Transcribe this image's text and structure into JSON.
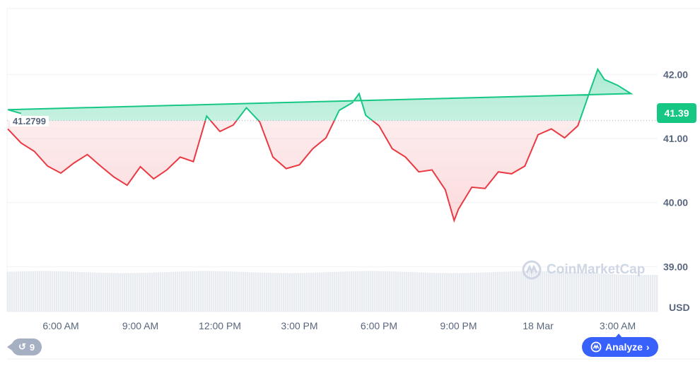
{
  "chart_data": {
    "type": "line",
    "title": "",
    "currency": "USD",
    "reference_price": 41.2799,
    "reference_label": "41.2799",
    "last_price_label": "41.39",
    "y_ticks": [
      "39.00",
      "40.00",
      "41.00",
      "42.00"
    ],
    "ylim": [
      38.6,
      42.4
    ],
    "x_ticks": [
      {
        "t": "06:00",
        "label": "6:00 AM"
      },
      {
        "t": "09:00",
        "label": "9:00 AM"
      },
      {
        "t": "12:00",
        "label": "12:00 PM"
      },
      {
        "t": "15:00",
        "label": "3:00 PM"
      },
      {
        "t": "18:00",
        "label": "6:00 PM"
      },
      {
        "t": "21:00",
        "label": "9:00 PM"
      },
      {
        "t": "00:00",
        "label": "18 Mar"
      },
      {
        "t": "03:00",
        "label": "3:00 AM"
      }
    ],
    "grid": true,
    "colors": {
      "up": "#16c784",
      "down": "#ea3943",
      "grid": "#eff2f5",
      "volume": "#e8ebf0"
    },
    "series": [
      {
        "points": [
          [
            "04:00",
            41.15
          ],
          [
            "04:30",
            40.93
          ],
          [
            "05:00",
            40.8
          ],
          [
            "05:30",
            40.57
          ],
          [
            "06:00",
            40.46
          ],
          [
            "06:30",
            40.62
          ],
          [
            "07:00",
            40.75
          ],
          [
            "07:30",
            40.57
          ],
          [
            "08:00",
            40.4
          ],
          [
            "08:30",
            40.27
          ],
          [
            "09:00",
            40.56
          ],
          [
            "09:30",
            40.37
          ],
          [
            "10:00",
            40.51
          ],
          [
            "10:30",
            40.71
          ],
          [
            "11:00",
            40.64
          ],
          [
            "11:30",
            41.35
          ],
          [
            "12:00",
            41.11
          ],
          [
            "12:30",
            41.21
          ],
          [
            "13:00",
            41.48
          ],
          [
            "13:30",
            41.26
          ],
          [
            "14:00",
            40.71
          ],
          [
            "14:30",
            40.53
          ],
          [
            "15:00",
            40.59
          ],
          [
            "15:30",
            40.84
          ],
          [
            "16:00",
            41.01
          ],
          [
            "16:30",
            41.44
          ],
          [
            "17:00",
            41.56
          ],
          [
            "17:15",
            41.7
          ],
          [
            "17:30",
            41.36
          ],
          [
            "18:00",
            41.2
          ],
          [
            "18:30",
            40.84
          ],
          [
            "19:00",
            40.71
          ],
          [
            "19:30",
            40.48
          ],
          [
            "20:00",
            40.51
          ],
          [
            "20:30",
            40.2
          ],
          [
            "20:50",
            39.72
          ],
          [
            "21:00",
            39.9
          ],
          [
            "21:30",
            40.24
          ],
          [
            "22:00",
            40.22
          ],
          [
            "22:30",
            40.48
          ],
          [
            "23:00",
            40.45
          ],
          [
            "23:30",
            40.57
          ],
          [
            "00:00",
            41.06
          ],
          [
            "00:30",
            41.15
          ],
          [
            "01:00",
            41.01
          ],
          [
            "01:30",
            41.2
          ],
          [
            "02:00",
            41.79
          ],
          [
            "02:15",
            42.08
          ],
          [
            "02:30",
            41.92
          ],
          [
            "03:00",
            41.83
          ],
          [
            "03:30",
            41.7
          ],
          [
            "04:00",
            41.45
          ],
          [
            "04:30",
            41.39
          ]
        ]
      }
    ]
  },
  "history_button": {
    "icon": "history-icon",
    "label": "9"
  },
  "analyze_button": {
    "icon": "cmc-chat-icon",
    "label": "Analyze"
  },
  "watermark": "CoinMarketCap"
}
